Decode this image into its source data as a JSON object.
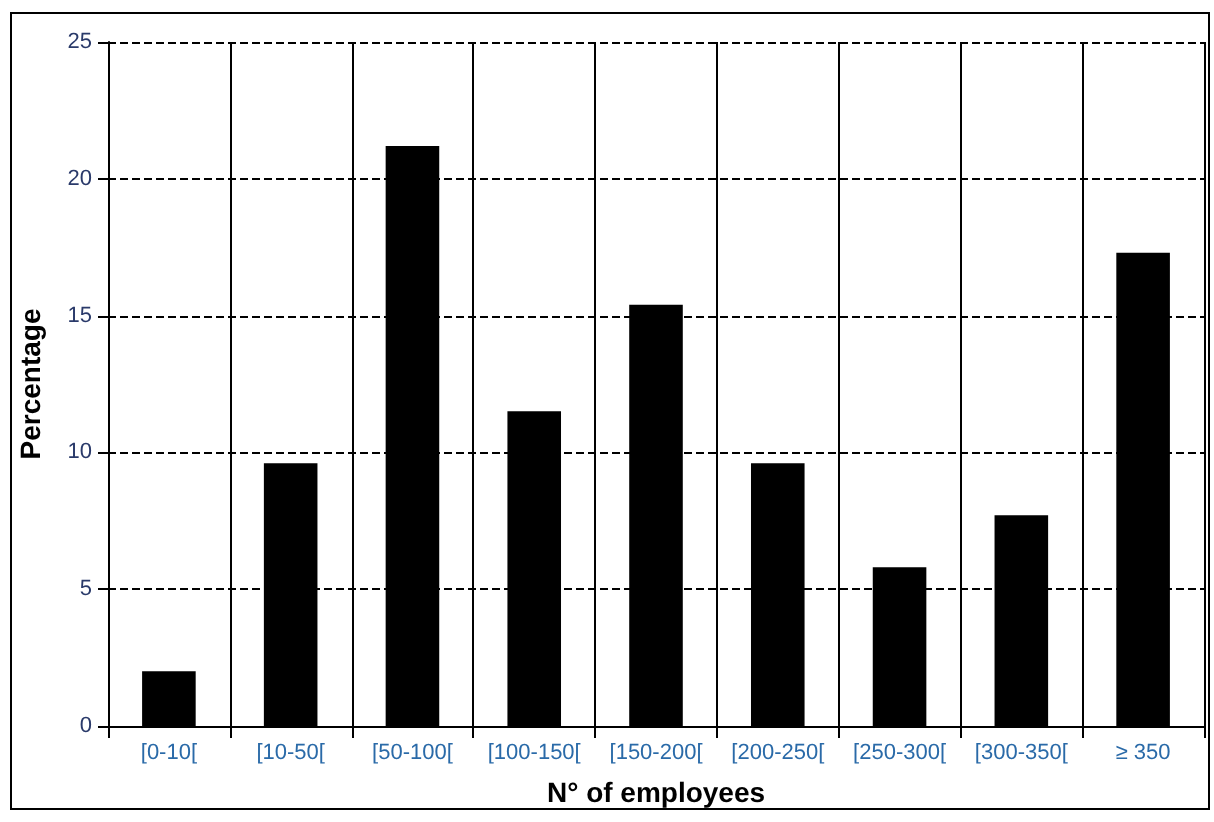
{
  "chart_data": {
    "type": "bar",
    "xlabel": "N° of employees",
    "ylabel": "Percentage",
    "categories": [
      "[0-10[",
      "[10-50[",
      "[50-100[",
      "[100-150[",
      "[150-200[",
      "[200-250[",
      "[250-300[",
      "[300-350[",
      "≥ 350"
    ],
    "values": [
      2.0,
      9.6,
      21.2,
      11.5,
      15.4,
      9.6,
      5.8,
      7.7,
      17.3
    ],
    "color": "#000000",
    "ylim": [
      0,
      25
    ],
    "yticks": [
      0,
      5,
      10,
      15,
      20,
      25
    ],
    "grid": true
  }
}
